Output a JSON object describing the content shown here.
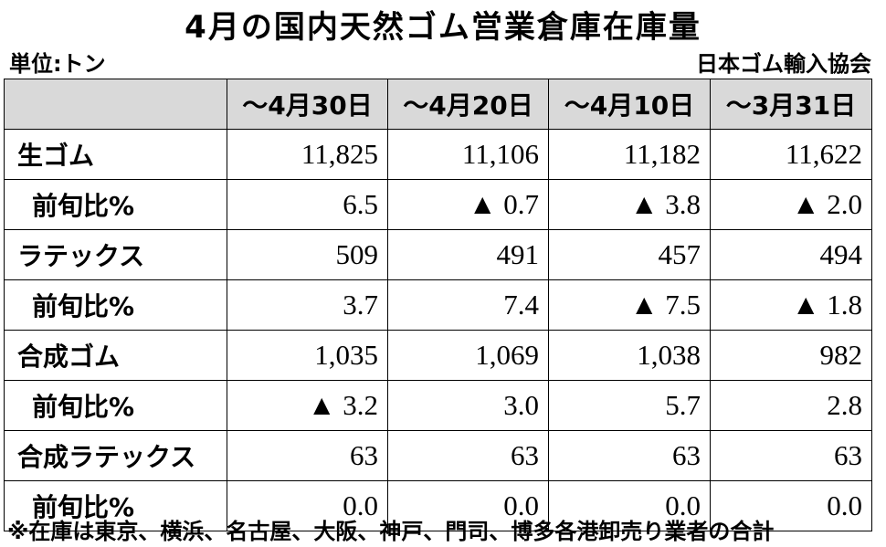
{
  "title": "4月の国内天然ゴム営業倉庫在庫量",
  "unit": "単位:トン",
  "source": "日本ゴム輸入協会",
  "columns": [
    "",
    "～4月30日",
    "～4月20日",
    "～4月10日",
    "～3月31日"
  ],
  "rows": [
    {
      "label": "生ゴム",
      "values": [
        "11,825",
        "11,106",
        "11,182",
        "11,622"
      ],
      "sub": false
    },
    {
      "label": "前旬比%",
      "values": [
        "6.5",
        "▲ 0.7",
        "▲ 3.8",
        "▲ 2.0"
      ],
      "sub": true
    },
    {
      "label": "ラテックス",
      "values": [
        "509",
        "491",
        "457",
        "494"
      ],
      "sub": false
    },
    {
      "label": "前旬比%",
      "values": [
        "3.7",
        "7.4",
        "▲ 7.5",
        "▲ 1.8"
      ],
      "sub": true
    },
    {
      "label": "合成ゴム",
      "values": [
        "1,035",
        "1,069",
        "1,038",
        "982"
      ],
      "sub": false
    },
    {
      "label": "前旬比%",
      "values": [
        "▲ 3.2",
        "3.0",
        "5.7",
        "2.8"
      ],
      "sub": true
    },
    {
      "label": "合成ラテックス",
      "values": [
        "63",
        "63",
        "63",
        "63"
      ],
      "sub": false
    },
    {
      "label": "前旬比%",
      "values": [
        "0.0",
        "0.0",
        "0.0",
        "0.0"
      ],
      "sub": true
    }
  ],
  "note": "※在庫は東京、横浜、名古屋、大阪、神戸、門司、博多各港卸売り業者の合計"
}
